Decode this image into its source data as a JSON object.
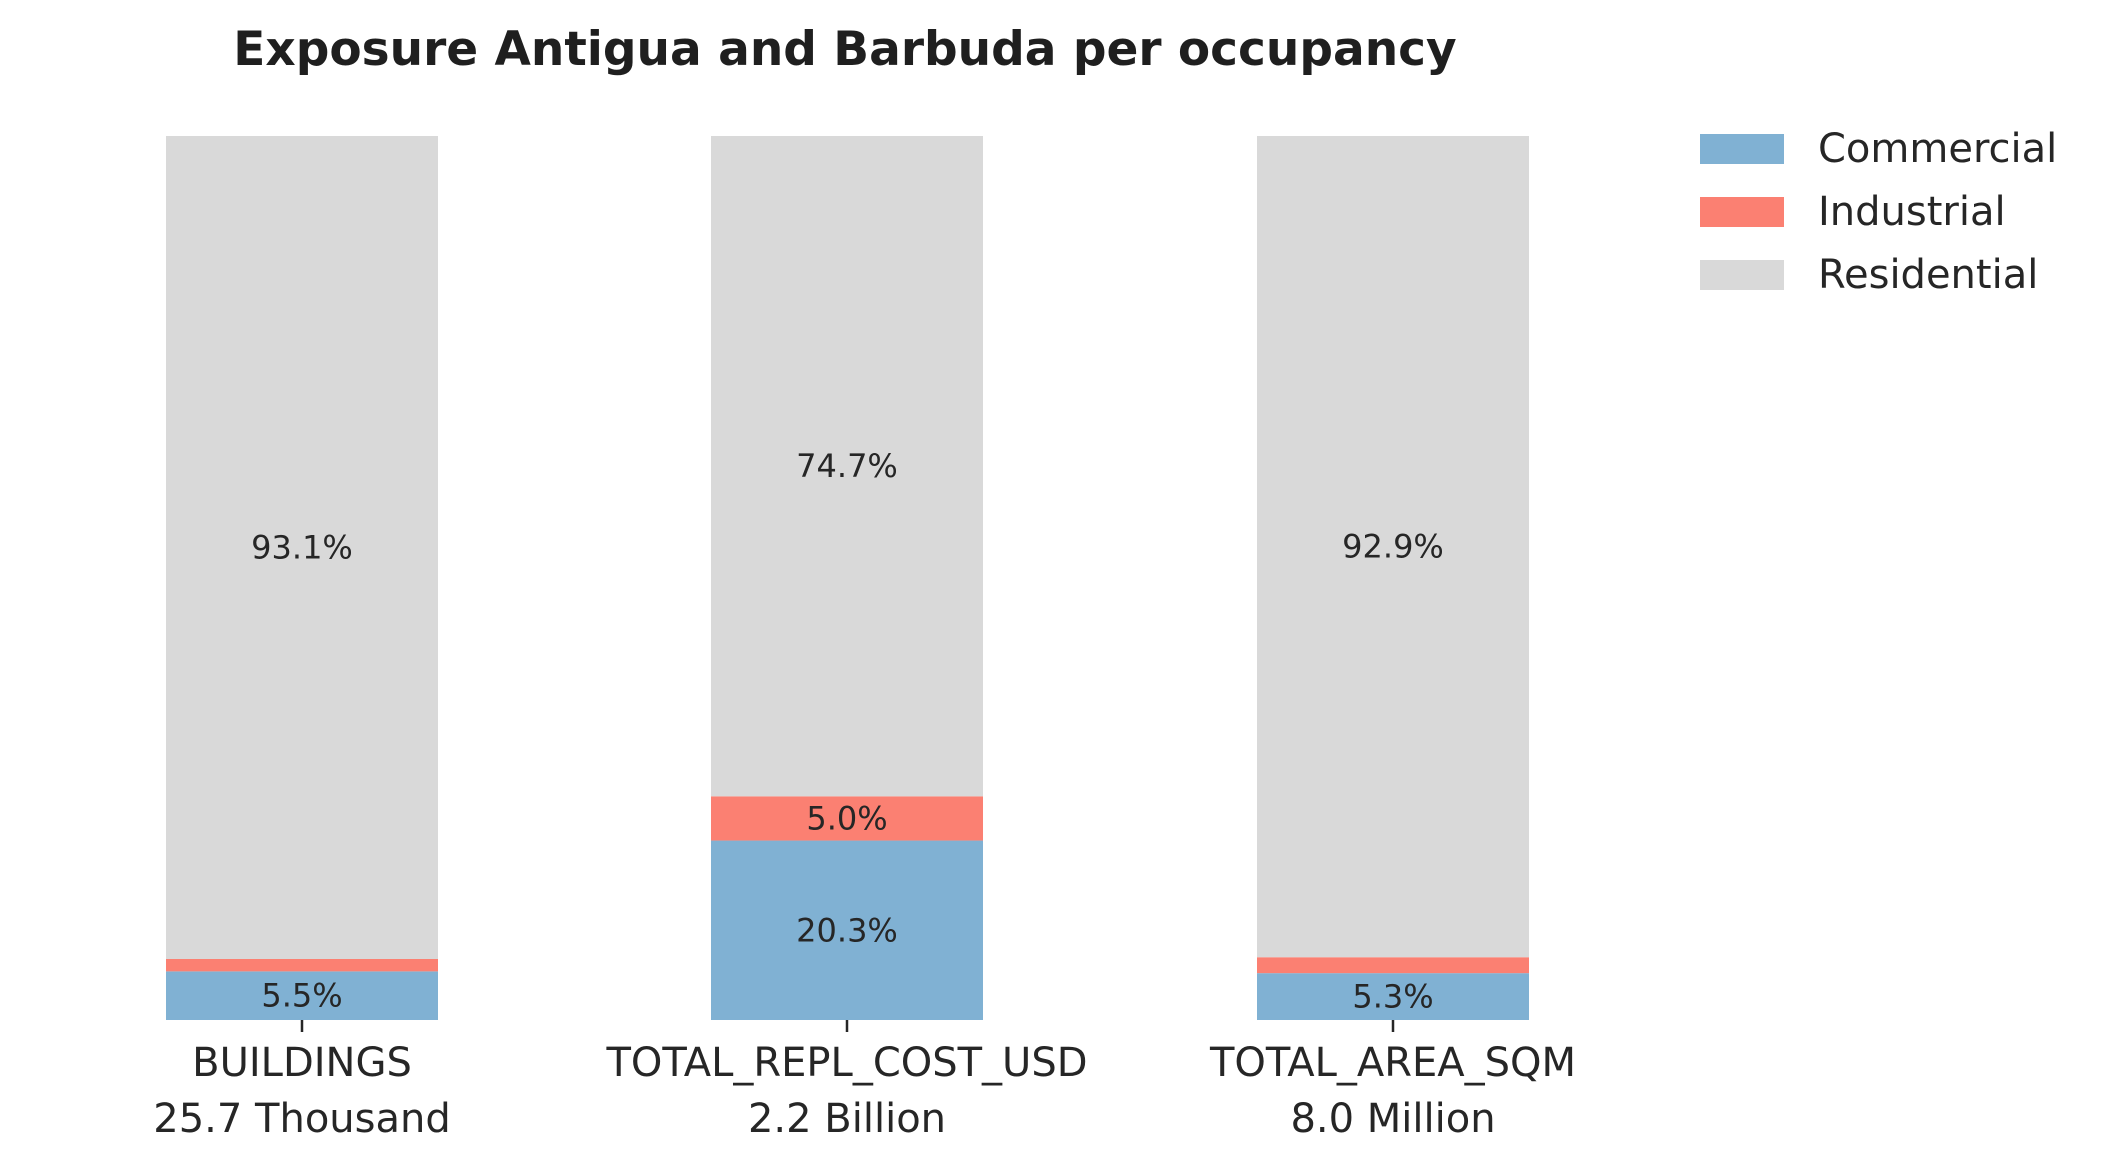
{
  "chart_data": {
    "type": "bar",
    "stacked": true,
    "normalized": true,
    "title": "Exposure Antigua and Barbuda per occupancy",
    "categories": [
      "BUILDINGS",
      "TOTAL_REPL_COST_USD",
      "TOTAL_AREA_SQM"
    ],
    "category_totals": [
      "25.7 Thousand",
      "2.2 Billion",
      "8.0 Million"
    ],
    "ylim": [
      0,
      100
    ],
    "grid": false,
    "legend_position": "top-right",
    "series": [
      {
        "name": "Commercial",
        "color": "#80b1d3",
        "values": [
          5.5,
          20.3,
          5.3
        ],
        "labels": [
          "5.5%",
          "20.3%",
          "5.3%"
        ]
      },
      {
        "name": "Industrial",
        "color": "#fb8072",
        "values": [
          1.4,
          5.0,
          1.8
        ],
        "labels": [
          "",
          "5.0%",
          ""
        ]
      },
      {
        "name": "Residential",
        "color": "#d9d9d9",
        "values": [
          93.1,
          74.7,
          92.9
        ],
        "labels": [
          "93.1%",
          "74.7%",
          "92.9%"
        ]
      }
    ]
  }
}
